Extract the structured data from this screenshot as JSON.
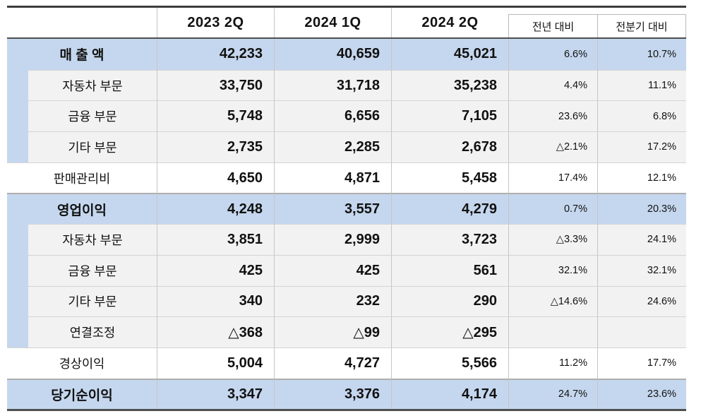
{
  "table": {
    "title": "quarterly-earnings-summary",
    "unit_note": "",
    "columns": {
      "c1": "2023 2Q",
      "c2": "2024 1Q",
      "c3": "2024 2Q",
      "c4": "전년 대비",
      "c5": "전분기 대비"
    },
    "rows": [
      {
        "label": "매 출 액",
        "v1": "42,233",
        "v2": "40,659",
        "v3": "45,021",
        "p1": "6.6%",
        "p2": "10.7%"
      },
      {
        "label": "자동차 부문",
        "v1": "33,750",
        "v2": "31,718",
        "v3": "35,238",
        "p1": "4.4%",
        "p2": "11.1%"
      },
      {
        "label": "금융 부문",
        "v1": "5,748",
        "v2": "6,656",
        "v3": "7,105",
        "p1": "23.6%",
        "p2": "6.8%"
      },
      {
        "label": "기타 부문",
        "v1": "2,735",
        "v2": "2,285",
        "v3": "2,678",
        "p1": "△2.1%",
        "p2": "17.2%"
      },
      {
        "label": "판매관리비",
        "v1": "4,650",
        "v2": "4,871",
        "v3": "5,458",
        "p1": "17.4%",
        "p2": "12.1%"
      },
      {
        "label": "영업이익",
        "v1": "4,248",
        "v2": "3,557",
        "v3": "4,279",
        "p1": "0.7%",
        "p2": "20.3%"
      },
      {
        "label": "자동차 부문",
        "v1": "3,851",
        "v2": "2,999",
        "v3": "3,723",
        "p1": "△3.3%",
        "p2": "24.1%"
      },
      {
        "label": "금융 부문",
        "v1": "425",
        "v2": "425",
        "v3": "561",
        "p1": "32.1%",
        "p2": "32.1%"
      },
      {
        "label": "기타 부문",
        "v1": "340",
        "v2": "232",
        "v3": "290",
        "p1": "△14.6%",
        "p2": "24.6%"
      },
      {
        "label": "연결조정",
        "v1": "△368",
        "v2": "△99",
        "v3": "△295",
        "p1": "",
        "p2": ""
      },
      {
        "label": "경상이익",
        "v1": "5,004",
        "v2": "4,727",
        "v3": "5,566",
        "p1": "11.2%",
        "p2": "17.7%"
      },
      {
        "label": "당기순이익",
        "v1": "3,347",
        "v2": "3,376",
        "v3": "4,174",
        "p1": "24.7%",
        "p2": "23.6%"
      }
    ],
    "colors": {
      "highlight_row": "#c5d7ee",
      "sub_row": "#f2f2f2",
      "plain_row": "#ffffff",
      "dark_rule": "#3d3d3d",
      "light_rule": "#d4d4d4"
    }
  }
}
